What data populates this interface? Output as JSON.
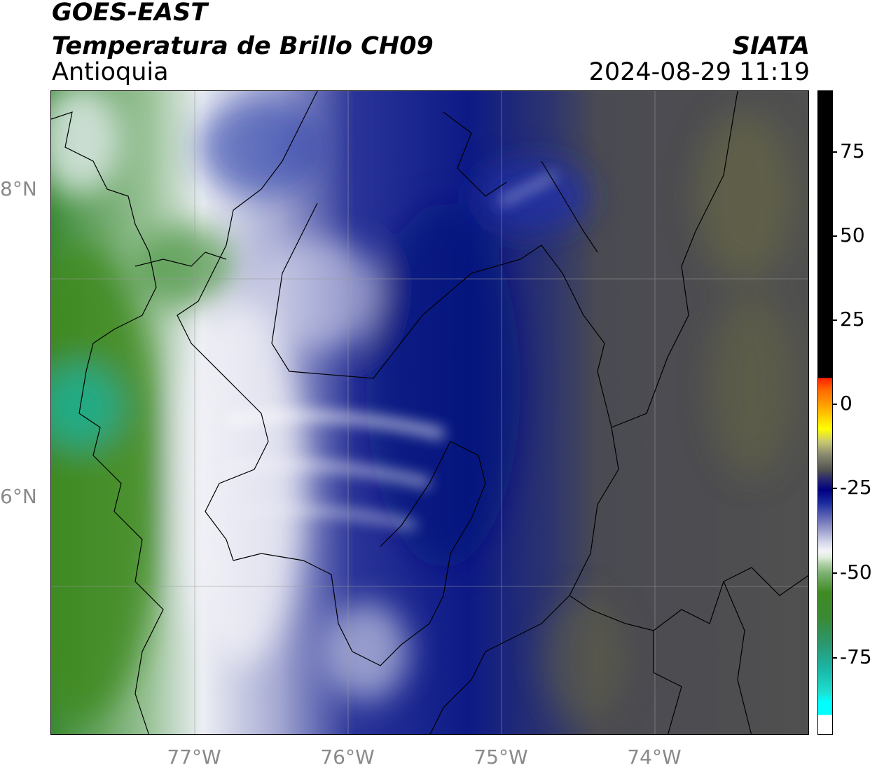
{
  "header": {
    "title_line1": "GOES-EAST",
    "title_line2": "Temperatura de Brillo CH09",
    "region": "Antioquia",
    "organization": "SIATA",
    "datetime": "2024-08-29 11:19"
  },
  "map": {
    "latitude_labels": [
      "8°N",
      "6°N"
    ],
    "longitude_labels": [
      "77°W",
      "76°W",
      "75°W",
      "74°W"
    ]
  },
  "colorbar": {
    "tick_labels": [
      "75",
      "50",
      "25",
      "0",
      "-25",
      "-50",
      "-75"
    ],
    "colors": {
      "warm": "#000000",
      "red": "#ff2000",
      "yellow": "#ffff00",
      "gray": "#505050",
      "navy": "#000080",
      "white": "#ffffff",
      "green": "#3f8a22",
      "cyan": "#00ffff"
    }
  }
}
